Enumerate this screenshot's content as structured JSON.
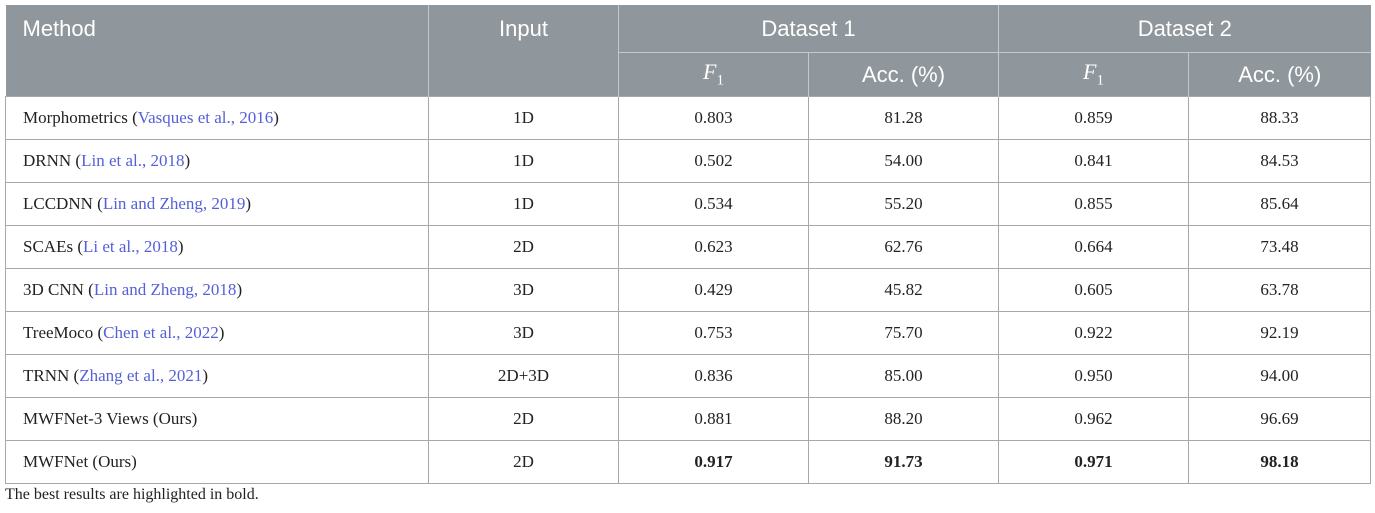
{
  "table": {
    "header": [
      "Method",
      "Input",
      "Dataset 1",
      "Dataset 2"
    ],
    "subheader": [
      {
        "symbol": "F",
        "sub": "1"
      },
      "Acc. (%)",
      {
        "symbol": "F",
        "sub": "1"
      },
      "Acc. (%)"
    ],
    "rows": [
      {
        "method": "Morphometrics (",
        "citation": "Vasques et al., 2016",
        "close": ")",
        "input": "1D",
        "values": [
          "0.803",
          "81.28",
          "0.859",
          "88.33"
        ]
      },
      {
        "method": "DRNN (",
        "citation": "Lin et al., 2018",
        "close": ")",
        "input": "1D",
        "values": [
          "0.502",
          "54.00",
          "0.841",
          "84.53"
        ]
      },
      {
        "method": "LCCDNN (",
        "citation": "Lin and Zheng, 2019",
        "close": ")",
        "input": "1D",
        "values": [
          "0.534",
          "55.20",
          "0.855",
          "85.64"
        ]
      },
      {
        "method": "SCAEs (",
        "citation": "Li et al., 2018",
        "close": ")",
        "input": "2D",
        "values": [
          "0.623",
          "62.76",
          "0.664",
          "73.48"
        ]
      },
      {
        "method": "3D CNN (",
        "citation": "Lin and Zheng, 2018",
        "close": ")",
        "input": "3D",
        "values": [
          "0.429",
          "45.82",
          "0.605",
          "63.78"
        ]
      },
      {
        "method": "TreeMoco (",
        "citation": "Chen et al., 2022",
        "close": ")",
        "input": "3D",
        "values": [
          "0.753",
          "75.70",
          "0.922",
          "92.19"
        ]
      },
      {
        "method": "TRNN (",
        "citation": "Zhang et al., 2021",
        "close": ")",
        "input": "2D+3D",
        "values": [
          "0.836",
          "85.00",
          "0.950",
          "94.00"
        ]
      },
      {
        "method": "MWFNet-3 Views (Ours)",
        "input": "2D",
        "values": [
          "0.881",
          "88.20",
          "0.962",
          "96.69"
        ]
      },
      {
        "method": "MWFNet (Ours)",
        "input": "2D",
        "values": [
          "0.917",
          "91.73",
          "0.971",
          "98.18"
        ]
      }
    ],
    "footnote": "The best results are highlighted in bold."
  }
}
